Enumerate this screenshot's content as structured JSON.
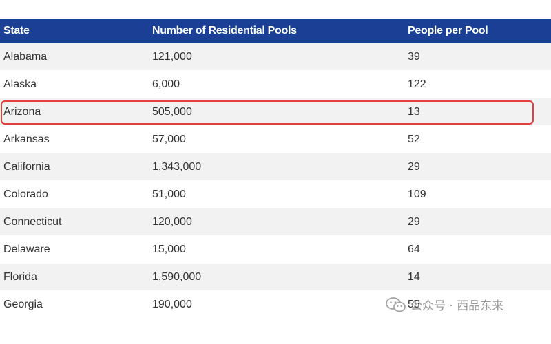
{
  "table": {
    "headers": [
      "State",
      "Number of Residential Pools",
      "People per Pool"
    ],
    "rows": [
      [
        "Alabama",
        "121,000",
        "39"
      ],
      [
        "Alaska",
        "6,000",
        "122"
      ],
      [
        "Arizona",
        "505,000",
        "13"
      ],
      [
        "Arkansas",
        "57,000",
        "52"
      ],
      [
        "California",
        "1,343,000",
        "29"
      ],
      [
        "Colorado",
        "51,000",
        "109"
      ],
      [
        "Connecticut",
        "120,000",
        "29"
      ],
      [
        "Delaware",
        "15,000",
        "64"
      ],
      [
        "Florida",
        "1,590,000",
        "14"
      ],
      [
        "Georgia",
        "190,000",
        "55"
      ]
    ],
    "highlighted_row": "Arizona"
  },
  "watermark": {
    "text": "公众号 · 西品东来",
    "icon": "wechat-icon"
  },
  "colors": {
    "header_bg": "#1a3f95",
    "highlight_border": "#e0403e",
    "stripe": "#f2f2f2"
  }
}
